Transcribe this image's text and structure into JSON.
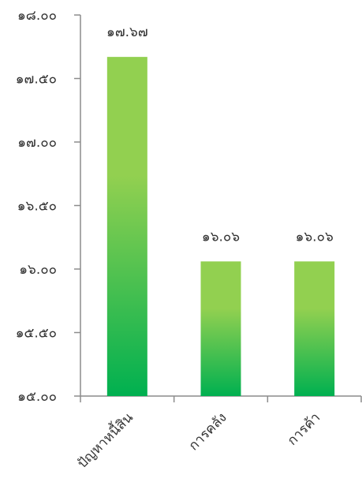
{
  "chart_data": {
    "type": "bar",
    "categories": [
      "ปัญหาหนี้สิน",
      "การคลัง",
      "การค้า"
    ],
    "values": [
      17.67,
      16.06,
      16.06
    ],
    "value_labels": [
      "๑๗.๖๗",
      "๑๖.๐๖",
      "๑๖.๐๖"
    ],
    "ylim": [
      15.0,
      18.0
    ],
    "yticks": [
      15.0,
      15.5,
      16.0,
      16.5,
      17.0,
      17.5,
      18.0
    ],
    "ytick_labels": [
      "๑๕.๐๐",
      "๑๕.๕๐",
      "๑๖.๐๐",
      "๑๖.๕๐",
      "๑๗.๐๐",
      "๑๗.๕๐",
      "๑๘.๐๐"
    ],
    "grid": false,
    "legend": "none",
    "colors": {
      "bar_top": "#92d050",
      "bar_bottom": "#00b050",
      "axis": "#8c8c8c",
      "text": "#333333"
    }
  }
}
